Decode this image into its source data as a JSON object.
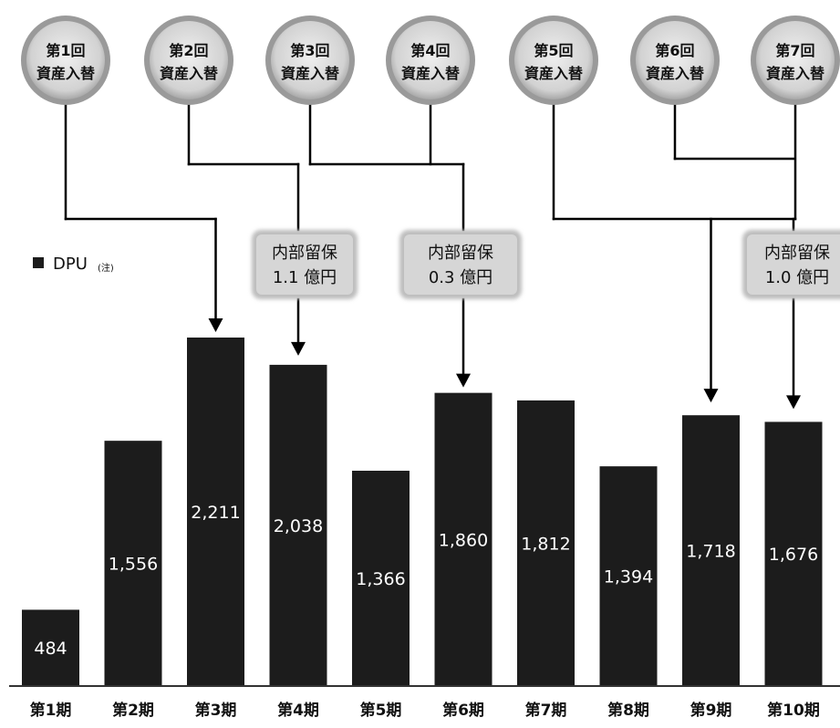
{
  "chart_data": {
    "type": "bar",
    "categories": [
      "第1期",
      "第2期",
      "第3期",
      "第4期",
      "第5期",
      "第6期",
      "第7期",
      "第8期",
      "第9期",
      "第10期"
    ],
    "series": [
      {
        "name": "DPU",
        "values": [
          484,
          1556,
          2211,
          2038,
          1366,
          1860,
          1812,
          1394,
          1718,
          1676
        ]
      }
    ],
    "value_labels": [
      "484",
      "1,556",
      "2,211",
      "2,038",
      "1,366",
      "1,860",
      "1,812",
      "1,394",
      "1,718",
      "1,676"
    ],
    "legend": {
      "label": "DPU",
      "note": "(注)",
      "position": "top-left"
    },
    "bar_color": "#1c1c1c",
    "label_color": "#ffffff",
    "connector_color": "#000000",
    "circle_fill": "#dadada",
    "badge_fill": "#d6d6d6",
    "ylim": [
      0,
      2700
    ],
    "grid": false
  },
  "events": [
    {
      "line1": "第1回",
      "line2": "資産入替"
    },
    {
      "line1": "第2回",
      "line2": "資産入替"
    },
    {
      "line1": "第3回",
      "line2": "資産入替"
    },
    {
      "line1": "第4回",
      "line2": "資産入替"
    },
    {
      "line1": "第5回",
      "line2": "資産入替"
    },
    {
      "line1": "第6回",
      "line2": "資産入替"
    },
    {
      "line1": "第7回",
      "line2": "資産入替"
    }
  ],
  "retained": [
    {
      "line1": "内部留保",
      "line2": "1.1 億円"
    },
    {
      "line1": "内部留保",
      "line2": "0.3 億円"
    },
    {
      "line1": "内部留保",
      "line2": "1.0 億円"
    }
  ]
}
